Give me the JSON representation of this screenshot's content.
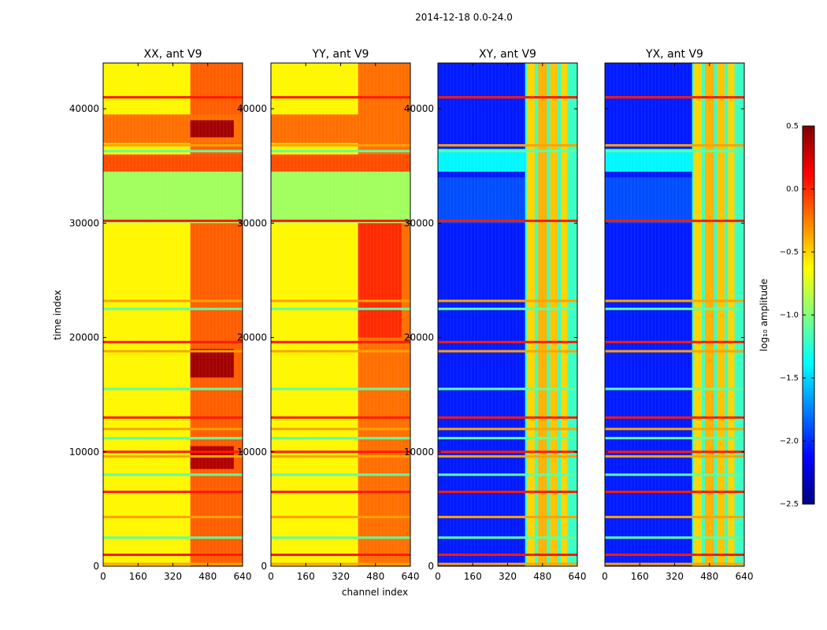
{
  "chart_data": {
    "type": "heatmap",
    "suptitle": "2014-12-18 0.0-24.0",
    "xlabel": "channel index",
    "ylabel": "time index",
    "xlim": [
      0,
      640
    ],
    "ylim": [
      0,
      44000
    ],
    "xticks": [
      0,
      160,
      320,
      480,
      640
    ],
    "yticks": [
      0,
      10000,
      20000,
      30000,
      40000
    ],
    "colorbar": {
      "label": "log₁₀ amplitude",
      "range": [
        -2.5,
        0.5
      ],
      "ticks": [
        0.5,
        0.0,
        -0.5,
        -1.0,
        -1.5,
        -2.0,
        -2.5
      ],
      "tick_labels": [
        "0.5",
        "0.0",
        "−0.5",
        "−1.0",
        "−1.5",
        "−2.0",
        "−2.5"
      ],
      "colormap": "jet"
    },
    "panels": [
      {
        "title": "XX, ant V9",
        "show_ytick_labels": true,
        "regions": [
          {
            "x": [
              0,
              400
            ],
            "y": [
              0,
              44000
            ],
            "value": -0.6
          },
          {
            "x": [
              400,
              640
            ],
            "y": [
              0,
              44000
            ],
            "value": -0.15
          },
          {
            "x": [
              400,
              600
            ],
            "y": [
              8500,
              10500
            ],
            "value": 0.35
          },
          {
            "x": [
              400,
              600
            ],
            "y": [
              16500,
              19000
            ],
            "value": 0.4
          },
          {
            "x": [
              0,
              640
            ],
            "y": [
              34500,
              36000
            ],
            "value": -0.1
          },
          {
            "x": [
              0,
              640
            ],
            "y": [
              37000,
              39500
            ],
            "value": -0.2
          },
          {
            "x": [
              400,
              600
            ],
            "y": [
              37500,
              39000
            ],
            "value": 0.4
          },
          {
            "x": [
              0,
              640
            ],
            "y": [
              30000,
              34500
            ],
            "value": -0.9
          }
        ],
        "bright_columns": [],
        "flag_rows": [
          41000,
          36800,
          36300,
          30200,
          23200,
          22500,
          19600,
          18800,
          15500,
          13000,
          12000,
          11200,
          10000,
          9600,
          8000,
          6500,
          4300,
          2500,
          1000,
          200
        ]
      },
      {
        "title": "YY, ant V9",
        "show_ytick_labels": true,
        "regions": [
          {
            "x": [
              0,
              400
            ],
            "y": [
              0,
              44000
            ],
            "value": -0.6
          },
          {
            "x": [
              400,
              640
            ],
            "y": [
              0,
              44000
            ],
            "value": -0.2
          },
          {
            "x": [
              400,
              600
            ],
            "y": [
              20000,
              34000
            ],
            "value": 0.0
          },
          {
            "x": [
              0,
              640
            ],
            "y": [
              34500,
              36000
            ],
            "value": -0.1
          },
          {
            "x": [
              0,
              640
            ],
            "y": [
              37000,
              39500
            ],
            "value": -0.2
          },
          {
            "x": [
              0,
              640
            ],
            "y": [
              30000,
              34500
            ],
            "value": -0.9
          }
        ],
        "bright_columns": [],
        "flag_rows": [
          41000,
          36800,
          36300,
          30200,
          23200,
          22500,
          19600,
          18800,
          15500,
          13000,
          12000,
          11200,
          10000,
          9600,
          8000,
          6500,
          4300,
          2500,
          1000,
          200
        ]
      },
      {
        "title": "XY, ant V9",
        "show_ytick_labels": true,
        "regions": [
          {
            "x": [
              0,
              640
            ],
            "y": [
              0,
              44000
            ],
            "value": -2.05
          },
          {
            "x": [
              0,
              400
            ],
            "y": [
              30000,
              34000
            ],
            "value": -1.9
          },
          {
            "x": [
              0,
              400
            ],
            "y": [
              34500,
              36500
            ],
            "value": -1.4
          },
          {
            "x": [
              400,
              640
            ],
            "y": [
              0,
              44000
            ],
            "value": -1.2
          }
        ],
        "bright_columns": [
          {
            "x": [
              410,
              445
            ],
            "value": -0.5
          },
          {
            "x": [
              460,
              500
            ],
            "value": -0.4
          },
          {
            "x": [
              515,
              550
            ],
            "value": -0.45
          },
          {
            "x": [
              565,
              595
            ],
            "value": -0.5
          }
        ],
        "flag_rows": [
          41000,
          36800,
          36300,
          30200,
          23200,
          22500,
          19600,
          18800,
          15500,
          13000,
          12000,
          11200,
          10000,
          9600,
          8000,
          6500,
          4300,
          2500,
          1000,
          200
        ]
      },
      {
        "title": "YX, ant V9",
        "show_ytick_labels": false,
        "regions": [
          {
            "x": [
              0,
              640
            ],
            "y": [
              0,
              44000
            ],
            "value": -2.05
          },
          {
            "x": [
              0,
              400
            ],
            "y": [
              30000,
              34000
            ],
            "value": -1.9
          },
          {
            "x": [
              0,
              400
            ],
            "y": [
              34500,
              36500
            ],
            "value": -1.4
          },
          {
            "x": [
              400,
              640
            ],
            "y": [
              0,
              44000
            ],
            "value": -1.2
          }
        ],
        "bright_columns": [
          {
            "x": [
              410,
              445
            ],
            "value": -0.5
          },
          {
            "x": [
              460,
              500
            ],
            "value": -0.4
          },
          {
            "x": [
              515,
              550
            ],
            "value": -0.45
          },
          {
            "x": [
              565,
              595
            ],
            "value": -0.5
          }
        ],
        "flag_rows": [
          41000,
          36800,
          36300,
          30200,
          23200,
          22500,
          19600,
          18800,
          15500,
          13000,
          12000,
          11200,
          10000,
          9600,
          8000,
          6500,
          4300,
          2500,
          1000,
          200
        ]
      }
    ]
  }
}
